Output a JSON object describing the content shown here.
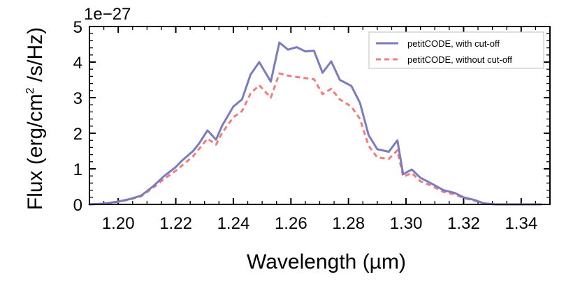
{
  "chart_data": {
    "type": "line",
    "title": "",
    "xlabel": "Wavelength (µm)",
    "ylabel_parts": [
      "Flux (erg/cm",
      "2",
      " /s/Hz)"
    ],
    "y_multiplier": "1e−27",
    "xlim": [
      1.19,
      1.35
    ],
    "ylim": [
      0,
      5
    ],
    "xticks": [
      1.2,
      1.22,
      1.24,
      1.26,
      1.28,
      1.3,
      1.32,
      1.34
    ],
    "xtick_labels": [
      "1.20",
      "1.22",
      "1.24",
      "1.26",
      "1.28",
      "1.30",
      "1.32",
      "1.34"
    ],
    "yticks": [
      0,
      1,
      2,
      3,
      4,
      5
    ],
    "ytick_labels": [
      "0",
      "1",
      "2",
      "3",
      "4",
      "5"
    ],
    "grid": false,
    "legend_location": "top-right",
    "series": [
      {
        "name": "petitCODE, with cut-off",
        "color": "#7b7bbf",
        "style": "solid",
        "x": [
          1.19,
          1.195,
          1.2,
          1.204,
          1.208,
          1.212,
          1.216,
          1.22,
          1.222,
          1.226,
          1.228,
          1.231,
          1.234,
          1.236,
          1.24,
          1.243,
          1.246,
          1.249,
          1.253,
          1.256,
          1.259,
          1.262,
          1.265,
          1.268,
          1.271,
          1.274,
          1.277,
          1.281,
          1.284,
          1.287,
          1.29,
          1.294,
          1.297,
          1.299,
          1.302,
          1.305,
          1.309,
          1.313,
          1.317,
          1.32,
          1.324,
          1.327,
          1.331,
          1.335,
          1.341,
          1.347
        ],
        "y": [
          0.0,
          0.02,
          0.08,
          0.15,
          0.25,
          0.5,
          0.8,
          1.05,
          1.22,
          1.5,
          1.7,
          2.08,
          1.82,
          2.2,
          2.75,
          2.95,
          3.65,
          4.0,
          3.45,
          4.55,
          4.35,
          4.42,
          4.3,
          4.32,
          3.7,
          4.02,
          3.5,
          3.33,
          2.85,
          1.95,
          1.55,
          1.48,
          1.8,
          0.85,
          0.98,
          0.75,
          0.58,
          0.4,
          0.32,
          0.2,
          0.12,
          0.03,
          0.0,
          0.0,
          0.0,
          0.0
        ]
      },
      {
        "name": "petitCODE, without cut-off",
        "color": "#f47c7c",
        "style": "dashed",
        "x": [
          1.19,
          1.195,
          1.2,
          1.204,
          1.208,
          1.212,
          1.216,
          1.22,
          1.222,
          1.226,
          1.228,
          1.231,
          1.234,
          1.236,
          1.24,
          1.243,
          1.246,
          1.249,
          1.253,
          1.256,
          1.259,
          1.262,
          1.265,
          1.268,
          1.271,
          1.274,
          1.277,
          1.281,
          1.284,
          1.287,
          1.29,
          1.294,
          1.297,
          1.299,
          1.302,
          1.305,
          1.309,
          1.313,
          1.317,
          1.32,
          1.324,
          1.327,
          1.331,
          1.335,
          1.341,
          1.347
        ],
        "y": [
          0.0,
          0.02,
          0.07,
          0.14,
          0.23,
          0.46,
          0.72,
          0.95,
          1.08,
          1.35,
          1.55,
          1.85,
          1.68,
          2.0,
          2.45,
          2.62,
          3.12,
          3.35,
          3.0,
          3.68,
          3.62,
          3.58,
          3.55,
          3.52,
          3.1,
          3.25,
          2.95,
          2.75,
          2.4,
          1.65,
          1.32,
          1.28,
          1.52,
          0.78,
          0.88,
          0.65,
          0.52,
          0.35,
          0.28,
          0.18,
          0.1,
          0.03,
          0.0,
          0.0,
          0.0,
          0.0
        ]
      }
    ]
  }
}
